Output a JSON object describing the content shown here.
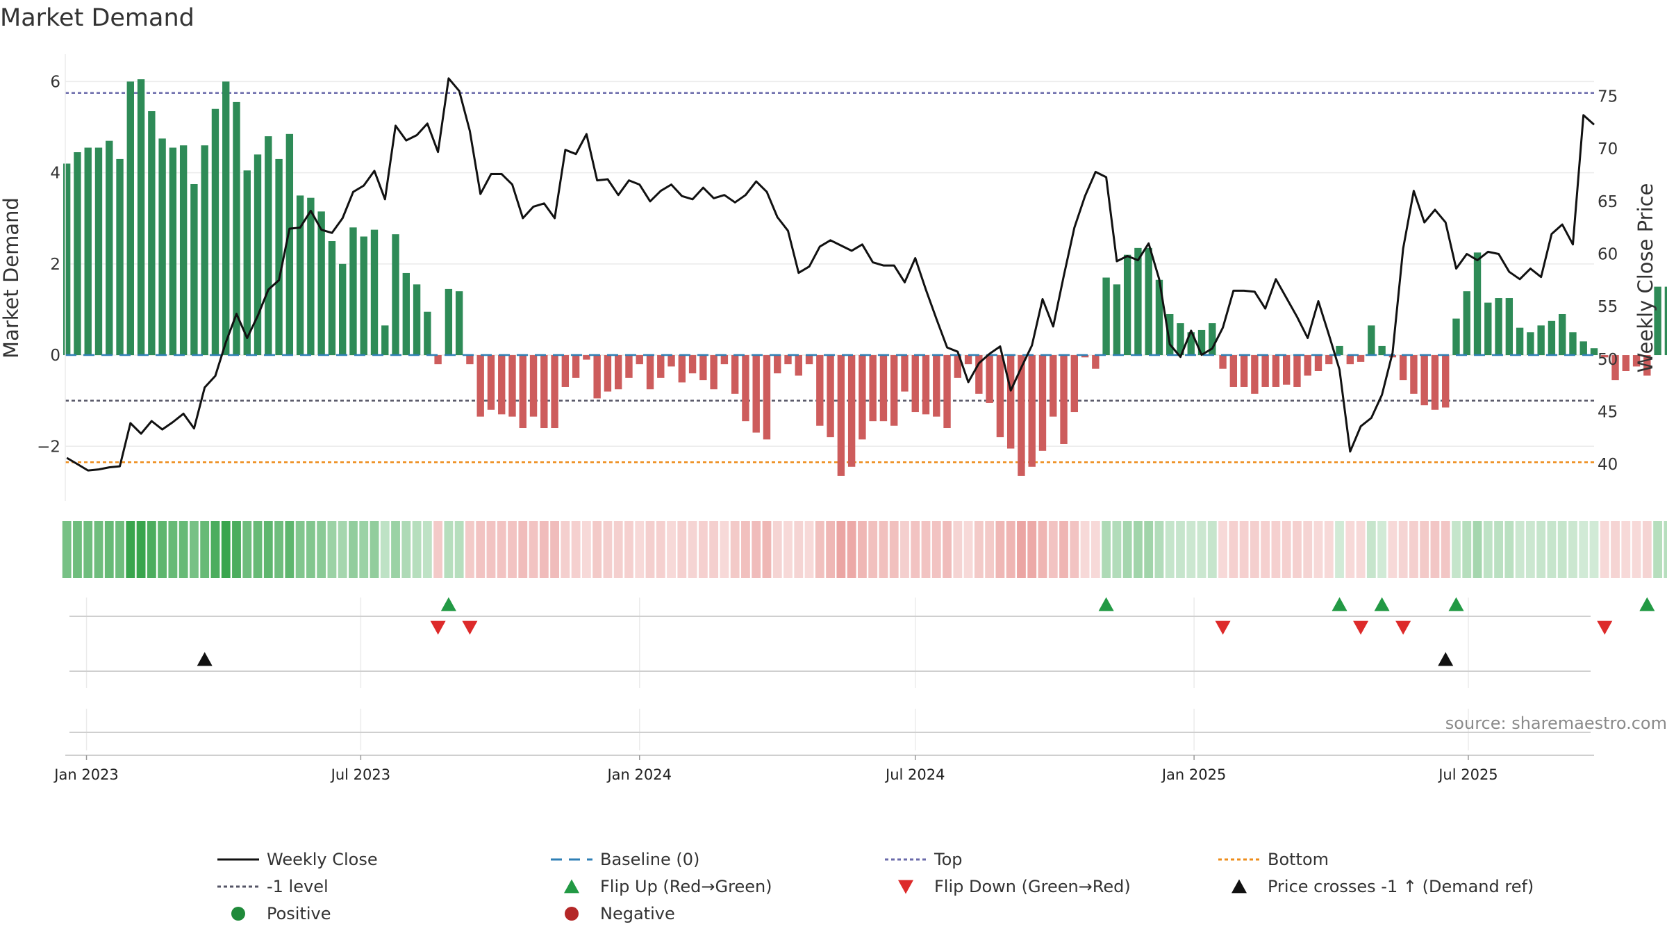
{
  "title": "Market Demand",
  "chart_data": {
    "type": "bar",
    "title": "Market Demand",
    "xlabel": "",
    "ylabel": "Market Demand",
    "y2label": "Weekly Close Price",
    "ylim": [
      -3.2,
      6.6
    ],
    "y2lim": [
      36.5,
      79
    ],
    "yticks": [
      6,
      4,
      2,
      0,
      -2
    ],
    "ytick_labels": [
      "6",
      "4",
      "2",
      "0",
      "−2"
    ],
    "y2ticks": [
      75,
      70,
      65,
      60,
      55,
      50,
      45,
      40
    ],
    "y2tick_labels": [
      "75",
      "70",
      "65",
      "60",
      "55",
      "50",
      "45",
      "40"
    ],
    "x_start": "2022-12-18",
    "x_end": "2025-09-22",
    "xticks": [
      {
        "date": "2023-01-01",
        "label": "Jan 2023"
      },
      {
        "date": "2023-07-01",
        "label": "Jul 2023"
      },
      {
        "date": "2024-01-01",
        "label": "Jan 2024"
      },
      {
        "date": "2024-07-01",
        "label": "Jul 2024"
      },
      {
        "date": "2025-01-01",
        "label": "Jan 2025"
      },
      {
        "date": "2025-07-01",
        "label": "Jul 2025"
      }
    ],
    "first_week": "2022-12-19",
    "week_days": 7,
    "reference_lines": {
      "baseline": 0,
      "top": 5.75,
      "neg_one": -1,
      "bottom": -2.35
    },
    "demand": [
      4.2,
      4.45,
      4.55,
      4.55,
      4.7,
      4.3,
      6.0,
      6.05,
      5.35,
      4.75,
      4.55,
      4.6,
      3.75,
      4.6,
      5.4,
      6.0,
      5.55,
      4.05,
      4.4,
      4.8,
      4.3,
      4.85,
      3.5,
      3.45,
      3.15,
      2.5,
      2.0,
      2.8,
      2.6,
      2.75,
      0.65,
      2.65,
      1.8,
      1.55,
      0.95,
      -0.2,
      1.45,
      1.4,
      -0.2,
      -1.35,
      -1.2,
      -1.3,
      -1.35,
      -1.6,
      -1.35,
      -1.6,
      -1.6,
      -0.7,
      -0.5,
      -0.1,
      -0.95,
      -0.8,
      -0.75,
      -0.5,
      -0.2,
      -0.75,
      -0.5,
      -0.25,
      -0.6,
      -0.4,
      -0.55,
      -0.75,
      -0.2,
      -0.85,
      -1.45,
      -1.7,
      -1.85,
      -0.4,
      -0.2,
      -0.45,
      -0.2,
      -1.55,
      -1.8,
      -2.65,
      -2.45,
      -1.85,
      -1.45,
      -1.45,
      -1.55,
      -0.8,
      -1.25,
      -1.3,
      -1.35,
      -1.6,
      -0.5,
      -0.2,
      -0.85,
      -1.05,
      -1.8,
      -2.05,
      -2.65,
      -2.45,
      -2.1,
      -1.35,
      -1.95,
      -1.25,
      -0.05,
      -0.3,
      1.7,
      1.55,
      2.2,
      2.35,
      2.35,
      1.65,
      0.9,
      0.7,
      0.5,
      0.55,
      0.7,
      -0.3,
      -0.7,
      -0.7,
      -0.85,
      -0.7,
      -0.7,
      -0.65,
      -0.7,
      -0.45,
      -0.35,
      -0.2,
      0.2,
      -0.2,
      -0.15,
      0.65,
      0.2,
      -0.05,
      -0.55,
      -0.85,
      -1.1,
      -1.2,
      -1.15,
      0.8,
      1.4,
      2.25,
      1.15,
      1.25,
      1.25,
      0.6,
      0.5,
      0.65,
      0.75,
      0.9,
      0.5,
      0.3,
      0.15,
      -0.05,
      -0.55,
      -0.35,
      -0.25,
      -0.45,
      1.5,
      1.5
    ],
    "price": [
      40.6,
      40.0,
      39.4,
      39.5,
      39.7,
      39.8,
      43.9,
      42.9,
      44.1,
      43.3,
      44.0,
      44.8,
      43.4,
      47.3,
      48.4,
      51.6,
      54.3,
      52.0,
      54.1,
      56.6,
      57.5,
      62.4,
      62.5,
      64.1,
      62.3,
      62.0,
      63.4,
      65.9,
      66.5,
      67.9,
      65.2,
      72.2,
      70.8,
      71.3,
      72.4,
      69.7,
      76.7,
      75.5,
      71.7,
      65.7,
      67.6,
      67.6,
      66.6,
      63.4,
      64.5,
      64.8,
      63.4,
      69.9,
      69.5,
      71.4,
      67.0,
      67.1,
      65.6,
      67.0,
      66.6,
      65.0,
      66.0,
      66.6,
      65.5,
      65.2,
      66.3,
      65.3,
      65.6,
      64.9,
      65.6,
      66.9,
      65.9,
      63.5,
      62.2,
      58.2,
      58.8,
      60.7,
      61.3,
      60.8,
      60.3,
      60.9,
      59.2,
      58.9,
      58.9,
      57.3,
      59.6,
      56.6,
      53.8,
      51.1,
      50.7,
      47.8,
      49.6,
      50.5,
      51.2,
      47.0,
      49.2,
      51.3,
      55.7,
      53.1,
      57.9,
      62.5,
      65.5,
      67.8,
      67.3,
      59.3,
      59.8,
      59.4,
      61.0,
      57.6,
      51.4,
      50.2,
      52.7,
      50.4,
      51.0,
      53.0,
      56.5,
      56.5,
      56.4,
      54.8,
      57.6,
      55.8,
      54.0,
      52.0,
      55.5,
      52.3,
      49.0,
      41.2,
      43.6,
      44.4,
      46.6,
      50.6,
      60.5,
      66.0,
      63.0,
      64.2,
      63.0,
      58.6,
      60.0,
      59.4,
      60.2,
      60.0,
      58.3,
      57.6,
      58.6,
      57.8,
      61.9,
      62.8,
      60.9,
      73.2,
      72.3
    ],
    "shade_intensity": [
      0.55,
      0.6,
      0.6,
      0.6,
      0.65,
      0.6,
      0.9,
      0.9,
      0.8,
      0.7,
      0.65,
      0.65,
      0.55,
      0.65,
      0.8,
      0.9,
      0.8,
      0.6,
      0.65,
      0.7,
      0.6,
      0.7,
      0.5,
      0.5,
      0.45,
      0.35,
      0.3,
      0.4,
      0.35,
      0.4,
      0.15,
      0.35,
      0.25,
      0.2,
      0.15,
      0.15,
      0.2,
      0.2,
      0.15,
      0.2,
      0.2,
      0.2,
      0.2,
      0.25,
      0.2,
      0.25,
      0.25,
      0.12,
      0.1,
      0.05,
      0.15,
      0.12,
      0.12,
      0.1,
      0.05,
      0.12,
      0.1,
      0.05,
      0.1,
      0.08,
      0.1,
      0.12,
      0.05,
      0.15,
      0.22,
      0.25,
      0.28,
      0.08,
      0.05,
      0.08,
      0.05,
      0.22,
      0.28,
      0.4,
      0.38,
      0.28,
      0.22,
      0.22,
      0.22,
      0.12,
      0.2,
      0.2,
      0.2,
      0.25,
      0.08,
      0.05,
      0.15,
      0.15,
      0.28,
      0.3,
      0.4,
      0.38,
      0.3,
      0.2,
      0.3,
      0.2,
      0.05,
      0.05,
      0.25,
      0.22,
      0.3,
      0.32,
      0.32,
      0.22,
      0.12,
      0.1,
      0.08,
      0.08,
      0.1,
      0.05,
      0.1,
      0.1,
      0.12,
      0.1,
      0.1,
      0.1,
      0.1,
      0.08,
      0.05,
      0.05,
      0.05,
      0.05,
      0.05,
      0.1,
      0.05,
      0.05,
      0.08,
      0.12,
      0.15,
      0.18,
      0.18,
      0.12,
      0.2,
      0.3,
      0.15,
      0.18,
      0.18,
      0.08,
      0.08,
      0.1,
      0.1,
      0.12,
      0.08,
      0.05,
      0.05,
      0.05,
      0.08,
      0.05,
      0.05,
      0.08,
      0.2,
      0.2
    ],
    "flip_up_weeks": [
      36,
      98,
      120,
      124,
      131,
      149
    ],
    "flip_down_weeks": [
      35,
      38,
      109,
      122,
      126,
      145
    ],
    "price_cross_weeks": [
      13,
      130
    ],
    "source": "source: sharemaestro.com",
    "legend": [
      {
        "label": "Weekly Close",
        "symbol": "line-solid",
        "color": "#111111"
      },
      {
        "label": "Baseline (0)",
        "symbol": "line-dash",
        "color": "#2f7fb5"
      },
      {
        "label": "Top",
        "symbol": "line-dot",
        "color": "#6a6aaa"
      },
      {
        "label": "Bottom",
        "symbol": "line-dot",
        "color": "#ee8c1a"
      },
      {
        "label": "-1 level",
        "symbol": "line-dot",
        "color": "#555566"
      },
      {
        "label": "Flip Up (Red→Green)",
        "symbol": "tri-up",
        "color": "#229944"
      },
      {
        "label": "Flip Down (Green→Red)",
        "symbol": "tri-down",
        "color": "#dd2a2a"
      },
      {
        "label": "Price crosses -1 ↑ (Demand ref)",
        "symbol": "tri-up",
        "color": "#111111"
      },
      {
        "label": "Positive",
        "symbol": "circle",
        "color": "#1f8a3a"
      },
      {
        "label": "Negative",
        "symbol": "circle",
        "color": "#b42727"
      }
    ]
  },
  "colors": {
    "positive_bar": "#2e8b57",
    "negative_bar": "#cd5c5c",
    "price_line": "#111111",
    "baseline": "#2f7fb5",
    "top_line": "#6a6aaa",
    "bottom_line": "#ee8c1a",
    "neg_one_line": "#555566",
    "flip_up": "#229944",
    "flip_down": "#dd2a2a",
    "price_cross": "#111111",
    "grid": "#ebebeb",
    "axis": "#cfcfcf",
    "shade_positive": "#2ea043",
    "shade_negative": "#d9534f"
  }
}
